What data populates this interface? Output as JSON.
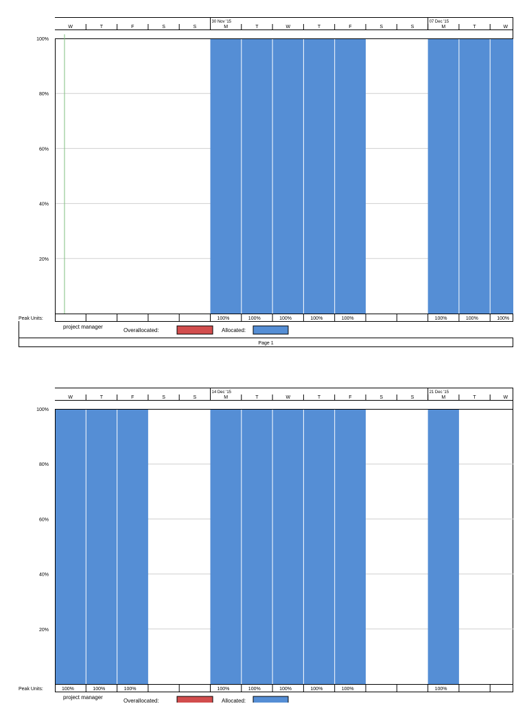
{
  "colors": {
    "allocated": "#558ed5",
    "overallocated": "#d24d4d",
    "grid": "#cfcfcf",
    "today_line": "#7fbf7f"
  },
  "chart_data": [
    {
      "type": "bar",
      "title": "",
      "ylabel": "Peak Units",
      "ylim": [
        0,
        100
      ],
      "yticks": [
        "20%",
        "40%",
        "60%",
        "80%",
        "100%"
      ],
      "week_labels": [
        {
          "label": "30 Nov '15",
          "day_index": 5
        },
        {
          "label": "07 Dec '15",
          "day_index": 12
        }
      ],
      "categories": [
        "W",
        "T",
        "F",
        "S",
        "S",
        "M",
        "T",
        "W",
        "T",
        "F",
        "S",
        "S",
        "M",
        "T",
        "W"
      ],
      "series": [
        {
          "name": "Allocated",
          "values": [
            0,
            0,
            0,
            0,
            0,
            100,
            100,
            100,
            100,
            100,
            0,
            0,
            100,
            100,
            100
          ]
        }
      ],
      "peak_units": [
        "",
        "",
        "",
        "",
        "",
        "100%",
        "100%",
        "100%",
        "100%",
        "100%",
        "",
        "",
        "100%",
        "100%",
        "100%"
      ],
      "resource": "project manager",
      "legend": [
        {
          "label": "Overallocated:"
        },
        {
          "label": "Allocated:"
        }
      ],
      "footer": "Page 1"
    },
    {
      "type": "bar",
      "title": "",
      "ylabel": "Peak Units",
      "ylim": [
        0,
        100
      ],
      "yticks": [
        "20%",
        "40%",
        "60%",
        "80%",
        "100%"
      ],
      "week_labels": [
        {
          "label": "14 Dec '15",
          "day_index": 5
        },
        {
          "label": "21 Dec '15",
          "day_index": 12
        }
      ],
      "categories": [
        "W",
        "T",
        "F",
        "S",
        "S",
        "M",
        "T",
        "W",
        "T",
        "F",
        "S",
        "S",
        "M",
        "T",
        "W"
      ],
      "series": [
        {
          "name": "Allocated",
          "values": [
            100,
            100,
            100,
            0,
            0,
            100,
            100,
            100,
            100,
            100,
            0,
            0,
            100,
            0,
            0
          ]
        }
      ],
      "peak_units": [
        "100%",
        "100%",
        "100%",
        "",
        "",
        "100%",
        "100%",
        "100%",
        "100%",
        "100%",
        "",
        "",
        "100%",
        "",
        ""
      ],
      "resource": "project manager",
      "legend": [
        {
          "label": "Overallocated:"
        },
        {
          "label": "Allocated:"
        }
      ]
    }
  ]
}
